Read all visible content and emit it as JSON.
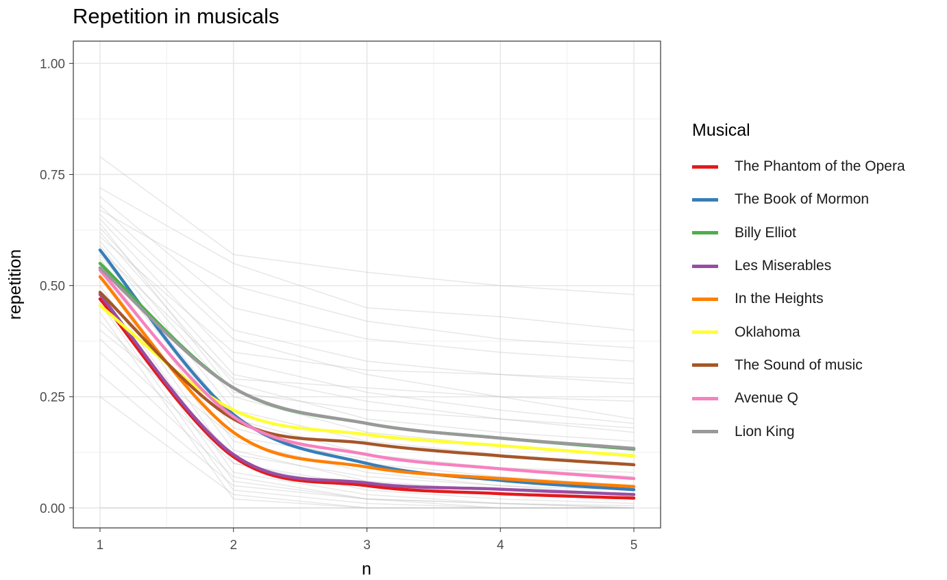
{
  "chart_data": {
    "type": "line",
    "title": "Repetition in musicals",
    "xlabel": "n",
    "ylabel": "repetition",
    "xlim": [
      0.8,
      5.2
    ],
    "ylim": [
      -0.045,
      1.05
    ],
    "x": [
      1,
      2,
      3,
      4,
      5
    ],
    "x_ticks": [
      "1",
      "2",
      "3",
      "4",
      "5"
    ],
    "y_ticks": [
      "0.00",
      "0.25",
      "0.50",
      "0.75",
      "1.00"
    ],
    "y_tick_values": [
      0,
      0.25,
      0.5,
      0.75,
      1.0
    ],
    "grid": true,
    "legend": {
      "title": "Musical",
      "position": "right"
    },
    "series": [
      {
        "name": "The Phantom of the Opera",
        "color": "#E41A1C",
        "values": [
          0.47,
          0.115,
          0.05,
          0.032,
          0.022
        ]
      },
      {
        "name": "The Book of Mormon",
        "color": "#377EB8",
        "values": [
          0.58,
          0.21,
          0.1,
          0.062,
          0.041
        ]
      },
      {
        "name": "Billy Elliot",
        "color": "#4DAF4A",
        "values": [
          0.55,
          0.27,
          0.19,
          0.157,
          0.132
        ]
      },
      {
        "name": "Les Miserables",
        "color": "#984EA3",
        "values": [
          0.48,
          0.12,
          0.056,
          0.042,
          0.03
        ]
      },
      {
        "name": "In the Heights",
        "color": "#FF7F00",
        "values": [
          0.52,
          0.17,
          0.092,
          0.066,
          0.048
        ]
      },
      {
        "name": "Oklahoma",
        "color": "#FFFF33",
        "values": [
          0.455,
          0.22,
          0.165,
          0.14,
          0.117
        ]
      },
      {
        "name": "The Sound of music",
        "color": "#A65628",
        "values": [
          0.485,
          0.2,
          0.145,
          0.117,
          0.097
        ]
      },
      {
        "name": "Avenue Q",
        "color": "#F781BF",
        "values": [
          0.535,
          0.205,
          0.12,
          0.088,
          0.066
        ]
      },
      {
        "name": "Lion King",
        "color": "#999999",
        "values": [
          0.54,
          0.27,
          0.19,
          0.157,
          0.134
        ]
      }
    ],
    "background_series": [
      [
        0.79,
        0.57,
        0.53,
        0.5,
        0.48
      ],
      [
        0.72,
        0.55,
        0.45,
        0.43,
        0.4
      ],
      [
        0.7,
        0.45,
        0.38,
        0.35,
        0.33
      ],
      [
        0.68,
        0.4,
        0.33,
        0.3,
        0.28
      ],
      [
        0.66,
        0.38,
        0.3,
        0.25,
        0.2
      ],
      [
        0.65,
        0.33,
        0.26,
        0.22,
        0.19
      ],
      [
        0.63,
        0.3,
        0.24,
        0.2,
        0.17
      ],
      [
        0.62,
        0.28,
        0.2,
        0.17,
        0.15
      ],
      [
        0.6,
        0.25,
        0.17,
        0.14,
        0.12
      ],
      [
        0.59,
        0.22,
        0.15,
        0.12,
        0.1
      ],
      [
        0.57,
        0.2,
        0.12,
        0.09,
        0.07
      ],
      [
        0.56,
        0.18,
        0.1,
        0.07,
        0.05
      ],
      [
        0.55,
        0.15,
        0.08,
        0.05,
        0.03
      ],
      [
        0.53,
        0.13,
        0.06,
        0.04,
        0.02
      ],
      [
        0.52,
        0.1,
        0.04,
        0.02,
        0.01
      ],
      [
        0.5,
        0.08,
        0.03,
        0.01,
        0.005
      ],
      [
        0.48,
        0.06,
        0.02,
        0.01,
        0.0
      ],
      [
        0.46,
        0.04,
        0.01,
        0.0,
        0.0
      ],
      [
        0.44,
        0.02,
        0.0,
        0.0,
        0.0
      ],
      [
        0.42,
        0.12,
        0.07,
        0.05,
        0.04
      ],
      [
        0.4,
        0.16,
        0.11,
        0.09,
        0.08
      ],
      [
        0.38,
        0.1,
        0.05,
        0.03,
        0.02
      ],
      [
        0.35,
        0.07,
        0.02,
        0.01,
        0.0
      ],
      [
        0.3,
        0.05,
        0.02,
        0.0,
        0.0
      ],
      [
        0.25,
        0.03,
        0.0,
        0.0,
        0.0
      ],
      [
        0.0,
        0.0,
        0.0,
        0.0,
        0.0
      ],
      [
        0.61,
        0.35,
        0.31,
        0.3,
        0.29
      ],
      [
        0.58,
        0.29,
        0.27,
        0.25,
        0.24
      ],
      [
        0.67,
        0.5,
        0.42,
        0.38,
        0.36
      ],
      [
        0.64,
        0.26,
        0.22,
        0.2,
        0.18
      ]
    ]
  }
}
